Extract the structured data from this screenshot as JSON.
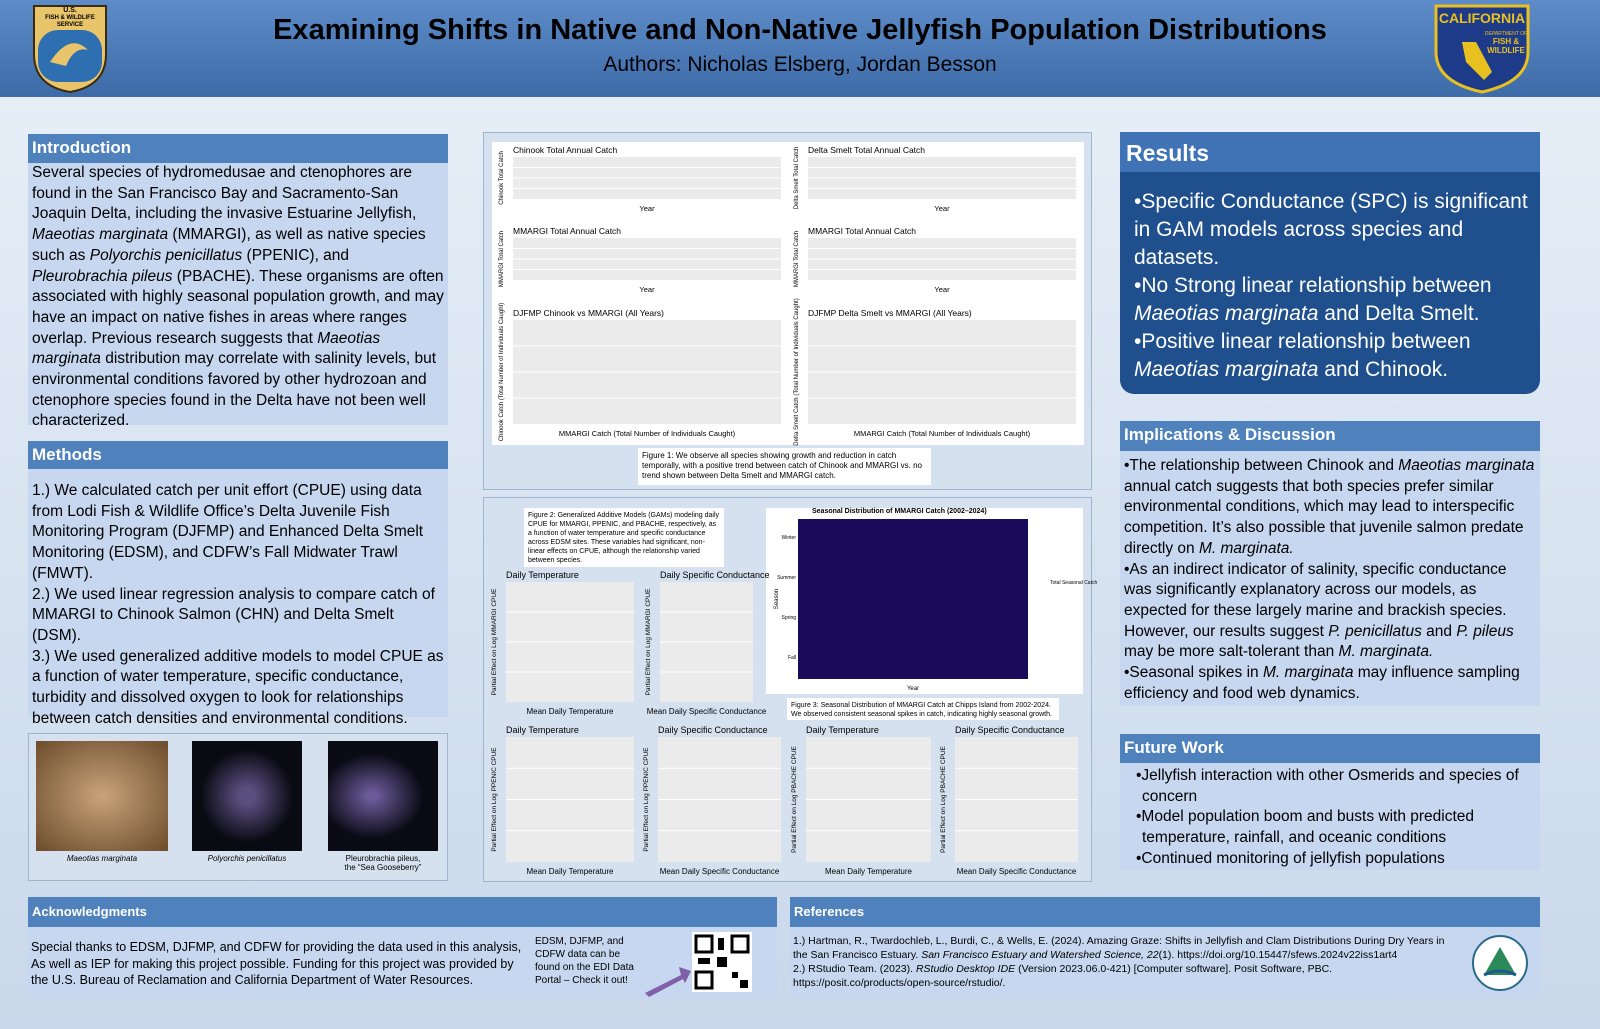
{
  "header": {
    "title": "Examining Shifts in Native and Non-Native Jellyfish Population Distributions",
    "authors": "Authors: Nicholas Elsberg, Jordan Besson",
    "left_logo": [
      "U.S.",
      "FISH & WILDLIFE",
      "SERVICE"
    ],
    "right_logo": [
      "CALIFORNIA",
      "DEPARTMENT OF",
      "FISH &",
      "WILDLIFE"
    ]
  },
  "introduction": {
    "heading": "Introduction",
    "text": [
      "Several species of hydromedusae and ctenophores are found in the San Francisco Bay and Sacramento-San Joaquin Delta, including the invasive Estuarine Jellyfish, ",
      {
        "em": "Maeotias marginata"
      },
      " (MMARGI), as well as native species such as ",
      {
        "em": "Polyorchis penicillatus"
      },
      " (PPENIC), and ",
      {
        "em": "Pleurobrachia pileus"
      },
      " (PBACHE). These organisms are often associated with highly seasonal population growth, and may have an impact on native fishes in areas where ranges overlap. Previous research suggests that ",
      {
        "em": "Maeotias marginata"
      },
      " distribution may correlate with salinity levels, but environmental conditions favored by other hydrozoan and ctenophore species found in the Delta have not been well characterized."
    ]
  },
  "methods": {
    "heading": "Methods",
    "items": [
      "1.) We calculated catch per unit effort (CPUE) using data from Lodi Fish & Wildlife Office’s Delta Juvenile Fish Monitoring Program (DJFMP) and Enhanced Delta Smelt Monitoring (EDSM), and CDFW’s Fall Midwater Trawl (FMWT).",
      "2.) We used linear regression analysis to compare catch of MMARGI to Chinook Salmon (CHN) and Delta Smelt (DSM).",
      "3.) We used generalized additive models to model CPUE as a function of water temperature, specific conductance, turbidity and dissolved oxygen to look for relationships between catch densities and environmental conditions."
    ]
  },
  "images": [
    {
      "caption": [
        "Maeotias marginata"
      ]
    },
    {
      "caption": [
        "Polyorchis penicillatus"
      ]
    },
    {
      "caption": [
        "Pleurobrachia pileus,",
        "the “Sea Gooseberry”"
      ]
    }
  ],
  "figure1": {
    "panels": [
      {
        "title": "Chinook Total Annual Catch",
        "ylabel": "Chinook Total Catch",
        "xlabel": "Year"
      },
      {
        "title": "Delta Smelt Total Annual Catch",
        "ylabel": "Delta Smelt Total Catch",
        "xlabel": "Year"
      },
      {
        "title": "MMARGI Total Annual Catch",
        "ylabel": "MMARGI Total Catch",
        "xlabel": "Year"
      },
      {
        "title": "MMARGI Total Annual Catch",
        "ylabel": "MMARGI Total Catch",
        "xlabel": "Year"
      },
      {
        "title": "DJFMP Chinook vs MMARGI (All Years)",
        "ylabel": "Chinook Catch (Total Number of Individuals Caught)",
        "xlabel": "MMARGI Catch (Total Number of Individuals Caught)"
      },
      {
        "title": "DJFMP Delta Smelt vs MMARGI (All Years)",
        "ylabel": "Delta Smelt Catch (Total Number of Individuals Caught)",
        "xlabel": "MMARGI Catch (Total Number of Individuals Caught)"
      }
    ],
    "caption": "Figure 1: We observe all species showing growth and reduction in catch temporally, with a positive trend between catch of Chinook and MMARGI vs. no trend shown between Delta Smelt and MMARGI catch."
  },
  "figure2": {
    "caption": "Figure 2: Generalized Additive Models (GAMs) modeling daily CPUE for MMARGI, PPENIC, and PBACHE, respectively, as a function of water temperature and specific conductance across EDSM sites. These variables had significant, non-linear effects on CPUE, although the relationship varied between species.",
    "panels": [
      {
        "title": "Daily Temperature",
        "ylabel": "Partial Effect on Log MMARGI CPUE",
        "xlabel": "Mean Daily Temperature"
      },
      {
        "title": "Daily Specific Conductance",
        "ylabel": "Partial Effect on Log MMARGI CPUE",
        "xlabel": "Mean Daily Specific Conductance"
      },
      {
        "title": "Daily Temperature",
        "ylabel": "Partial Effect on Log PPENIC CPUE",
        "xlabel": "Mean Daily Temperature"
      },
      {
        "title": "Daily Specific Conductance",
        "ylabel": "Partial Effect on Log PPENIC CPUE",
        "xlabel": "Mean Daily Specific Conductance"
      },
      {
        "title": "Daily Temperature",
        "ylabel": "Partial Effect on Log PBACHE CPUE",
        "xlabel": "Mean Daily Temperature"
      },
      {
        "title": "Daily Specific Conductance",
        "ylabel": "Partial Effect on Log PBACHE CPUE",
        "xlabel": "Mean Daily Specific Conductance"
      }
    ]
  },
  "figure3": {
    "title": "Seasonal Distribution of MMARGI Catch (2002–2024)",
    "ylabel": "Season",
    "xlabel": "Year",
    "seasons": [
      "Winter",
      "Summer",
      "Spring",
      "Fall"
    ],
    "legend_title": "Total Seasonal Catch",
    "caption": "Figure 3: Seasonal Distribution of MMARGI Catch at Chipps Island from 2002-2024. We observed consistent seasonal spikes in catch, indicating highly seasonal growth."
  },
  "results": {
    "heading": "Results",
    "items": [
      [
        "•Specific Conductance (SPC) is significant in GAM models across species and datasets."
      ],
      [
        "•No Strong linear relationship between ",
        {
          "em": "Maeotias marginata"
        },
        " and Delta Smelt."
      ],
      [
        "•Positive linear relationship between ",
        {
          "em": "Maeotias marginata"
        },
        " and Chinook."
      ]
    ]
  },
  "implications": {
    "heading": "Implications & Discussion",
    "items": [
      [
        "•The relationship between Chinook and ",
        {
          "em": "Maeotias marginata"
        },
        " annual catch suggests that both species prefer similar environmental conditions, which may lead to interspecific competition. It’s also possible that juvenile salmon predate directly on ",
        {
          "em": "M. marginata."
        }
      ],
      [
        "•As an indirect indicator of salinity, specific conductance was significantly explanatory across our models, as expected for these largely marine and brackish species. However, our results suggest ",
        {
          "em": "P. penicillatus"
        },
        " and ",
        {
          "em": "P. pileus"
        },
        " may be more salt-tolerant than ",
        {
          "em": "M. marginata."
        }
      ],
      [
        "•Seasonal spikes in ",
        {
          "em": "M. marginata"
        },
        " may influence sampling efficiency and food web dynamics."
      ]
    ]
  },
  "future_work": {
    "heading": "Future Work",
    "items": [
      "•Jellyfish interaction with other Osmerids and species of concern",
      "•Model population boom and busts with predicted temperature, rainfall, and oceanic conditions",
      "•Continued monitoring of jellyfish populations"
    ]
  },
  "acknowledgments": {
    "heading": "Acknowledgments",
    "text": "Special thanks to EDSM, DJFMP, and CDFW for providing the data used in this analysis, As well as IEP for making this project possible. Funding for this project was provided by the U.S. Bureau of Reclamation and California Department of Water Resources.",
    "note": "EDSM, DJFMP, and CDFW data can be found on the EDI  Data Portal – Check it out!"
  },
  "references": {
    "heading": "References",
    "items": [
      [
        "1.) Hartman, R., Twardochleb, L., Burdi, C., & Wells, E. (2024). Amazing Graze: Shifts in Jellyfish and Clam Distributions During Dry Years in the San Francisco Estuary. ",
        {
          "em": "San Francisco Estuary and Watershed Science, 22"
        },
        "(1). https://doi.org/10.15447/sfews.2024v22iss1art4"
      ],
      [
        "2.) RStudio Team. (2023). ",
        {
          "em": "RStudio Desktop IDE"
        },
        " (Version 2023.06.0-421) [Computer software]. Posit Software, PBC. https://posit.co/products/open-source/rstudio/."
      ]
    ]
  }
}
